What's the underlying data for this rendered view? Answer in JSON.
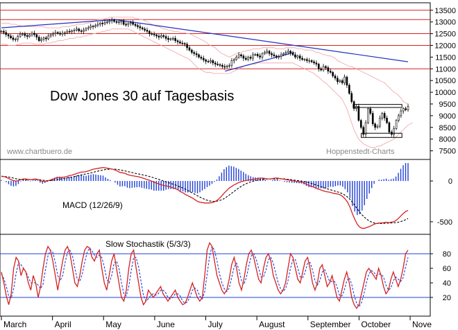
{
  "chart_data": [
    {
      "type": "candlestick",
      "title": "Dow Jones 30 auf Tagesbasis",
      "watermark_left": "www.chartbuero.de",
      "watermark_right": "Hoppenstedt-Charts",
      "y_ticks": [
        "13500",
        "13000",
        "12500",
        "12000",
        "11500",
        "11000",
        "10500",
        "10000",
        "9500",
        "9000",
        "8500",
        "8000",
        "7500"
      ],
      "ylim": [
        7250,
        13700
      ],
      "horizontal_levels": [
        13500,
        13100,
        12500,
        12000,
        11000
      ],
      "level_color": "#d62020",
      "trendlines": [
        {
          "from": [
            0.0,
            12750
          ],
          "to": [
            0.28,
            13100
          ]
        },
        {
          "from": [
            0.28,
            13100
          ],
          "to": [
            1.0,
            11300
          ]
        },
        {
          "from": [
            0.55,
            10900
          ],
          "to": [
            0.72,
            11700
          ]
        }
      ],
      "boxes": [
        {
          "x_from": 0.865,
          "x_to": 0.985,
          "y_low": 9350,
          "y_high": 9480
        },
        {
          "x_from": 0.885,
          "x_to": 0.985,
          "y_low": 8070,
          "y_high": 8250
        }
      ],
      "close": [
        12600,
        12550,
        12460,
        12400,
        12320,
        12250,
        12270,
        12380,
        12480,
        12500,
        12420,
        12380,
        12450,
        12520,
        12460,
        12350,
        12200,
        12260,
        12320,
        12280,
        12400,
        12460,
        12500,
        12550,
        12520,
        12480,
        12520,
        12540,
        12600,
        12580,
        12620,
        12650,
        12700,
        12620,
        12600,
        12650,
        12720,
        12760,
        12820,
        12800,
        12850,
        12900,
        12950,
        12920,
        12980,
        13000,
        13050,
        13080,
        13020,
        12980,
        13000,
        13050,
        12900,
        12880,
        12950,
        12970,
        12900,
        12850,
        12800,
        12750,
        12700,
        12650,
        12600,
        12500,
        12480,
        12450,
        12400,
        12350,
        12420,
        12380,
        12300,
        12250,
        12280,
        12300,
        12200,
        12150,
        12100,
        12080,
        12050,
        11900,
        11800,
        11700,
        11650,
        11600,
        11500,
        11450,
        11380,
        11320,
        11300,
        11350,
        11250,
        11200,
        11180,
        11150,
        11100,
        11080,
        11120,
        11150,
        11350,
        11400,
        11500,
        11600,
        11550,
        11450,
        11400,
        11500,
        11450,
        11600,
        11620,
        11550,
        11500,
        11650,
        11700,
        11750,
        11650,
        11600,
        11550,
        11500,
        11520,
        11600,
        11650,
        11700,
        11750,
        11680,
        11600,
        11500,
        11550,
        11450,
        11400,
        11400,
        11350,
        11350,
        11300,
        11250,
        11200,
        11000,
        10950,
        11100,
        11050,
        10900,
        10850,
        10700,
        10600,
        10450,
        10500,
        10400,
        10650,
        10300,
        9950,
        9600,
        9300,
        9400,
        8800,
        8500,
        8200,
        8700,
        9300,
        9100,
        8650,
        8500,
        8550,
        8900,
        9100,
        8900,
        8700,
        8300,
        8200,
        8450,
        8800,
        9000,
        9200,
        9300,
        9250,
        9400
      ],
      "bollinger_upper": [
        12950,
        12950,
        12950,
        12950,
        12900,
        12900,
        12900,
        12850,
        12850,
        12800,
        12800,
        12800,
        12800,
        12800,
        12800,
        12800,
        12800,
        12800,
        12800,
        12750,
        12750,
        12750,
        12750,
        12750,
        12750,
        12750,
        12800,
        12800,
        12800,
        12800,
        12850,
        12850,
        12900,
        12900,
        12900,
        12900,
        12950,
        12950,
        13000,
        13000,
        13050,
        13100,
        13100,
        13100,
        13150,
        13150,
        13200,
        13200,
        13200,
        13200,
        13200,
        13200,
        13200,
        13200,
        13200,
        13200,
        13200,
        13150,
        13150,
        13100,
        13100,
        13050,
        13000,
        12950,
        12900,
        12850,
        12800,
        12800,
        12750,
        12700,
        12700,
        12650,
        12650,
        12600,
        12600,
        12600,
        12550,
        12550,
        12550,
        12500,
        12500,
        12450,
        12400,
        12350,
        12300,
        12250,
        12200,
        12150,
        12050,
        12000,
        11950,
        11900,
        11800,
        11700,
        11650,
        11600,
        11550,
        11500,
        11550,
        11600,
        11650,
        11700,
        11700,
        11750,
        11750,
        11800,
        11800,
        11850,
        11850,
        11850,
        11850,
        11900,
        11900,
        11900,
        11900,
        11900,
        11900,
        11850,
        11850,
        11850,
        11850,
        11900,
        11900,
        11900,
        11900,
        11900,
        11850,
        11850,
        11850,
        11800,
        11800,
        11800,
        11800,
        11750,
        11700,
        11700,
        11650,
        11600,
        11600,
        11550,
        11550,
        11500,
        11450,
        11350,
        11300,
        11250,
        11200,
        11150,
        11100,
        11100,
        11050,
        11000,
        10950,
        10900,
        10850,
        10800,
        10750,
        10700,
        10650,
        10600,
        10550,
        10500,
        10450,
        10400,
        10300,
        10200,
        10100,
        10000,
        9950,
        9850,
        9750,
        9600,
        9550,
        9500
      ],
      "bollinger_lower": [
        12050,
        12050,
        12050,
        12000,
        12000,
        12000,
        12000,
        12050,
        12050,
        12100,
        12100,
        12100,
        12100,
        12100,
        12050,
        12050,
        12050,
        12050,
        12050,
        12100,
        12100,
        12100,
        12150,
        12150,
        12200,
        12200,
        12200,
        12250,
        12250,
        12300,
        12300,
        12300,
        12350,
        12350,
        12350,
        12400,
        12400,
        12450,
        12450,
        12500,
        12500,
        12550,
        12550,
        12600,
        12600,
        12650,
        12650,
        12700,
        12700,
        12700,
        12700,
        12700,
        12700,
        12700,
        12700,
        12650,
        12600,
        12550,
        12500,
        12450,
        12400,
        12350,
        12300,
        12250,
        12200,
        12150,
        12100,
        12050,
        12000,
        11950,
        11900,
        11850,
        11800,
        11750,
        11700,
        11650,
        11600,
        11550,
        11500,
        11450,
        11400,
        11300,
        11200,
        11100,
        11000,
        10950,
        10900,
        10850,
        10850,
        10850,
        10800,
        10800,
        10800,
        10800,
        10800,
        10800,
        10800,
        10800,
        10850,
        10900,
        10950,
        11000,
        11050,
        11100,
        11150,
        11150,
        11200,
        11200,
        11200,
        11250,
        11250,
        11250,
        11250,
        11250,
        11250,
        11250,
        11250,
        11250,
        11250,
        11250,
        11250,
        11250,
        11250,
        11250,
        11250,
        11200,
        11150,
        11100,
        11050,
        11000,
        10950,
        10900,
        10850,
        10800,
        10700,
        10650,
        10550,
        10450,
        10400,
        10300,
        10200,
        10100,
        10000,
        9900,
        9800,
        9700,
        9500,
        9300,
        9000,
        8700,
        8400,
        8200,
        8000,
        7900,
        7800,
        7750,
        7700,
        7650,
        7650,
        7650,
        7700,
        7700,
        7750,
        7800,
        7850,
        7900,
        7950,
        8000,
        8100,
        8200,
        8300,
        8400,
        8500,
        8600,
        8650,
        8700
      ]
    },
    {
      "type": "macd",
      "label": "MACD (12/26/9)",
      "y_ticks": [
        "0",
        "-500"
      ],
      "ylim": [
        -620,
        230
      ],
      "macd": [
        60,
        55,
        45,
        30,
        15,
        5,
        0,
        5,
        15,
        25,
        25,
        20,
        15,
        20,
        25,
        20,
        5,
        -5,
        -5,
        0,
        10,
        20,
        30,
        40,
        45,
        45,
        48,
        55,
        65,
        70,
        80,
        90,
        100,
        110,
        110,
        115,
        125,
        135,
        145,
        150,
        155,
        160,
        165,
        160,
        155,
        150,
        145,
        135,
        120,
        105,
        100,
        95,
        80,
        70,
        65,
        60,
        55,
        50,
        40,
        30,
        20,
        10,
        0,
        -15,
        -25,
        -35,
        -45,
        -55,
        -60,
        -65,
        -75,
        -85,
        -95,
        -110,
        -130,
        -145,
        -165,
        -180,
        -195,
        -210,
        -230,
        -250,
        -260,
        -265,
        -270,
        -270,
        -270,
        -265,
        -255,
        -240,
        -215,
        -185,
        -150,
        -120,
        -90,
        -70,
        -50,
        -35,
        -20,
        -10,
        0,
        5,
        10,
        15,
        20,
        25,
        30,
        35,
        35,
        30,
        25,
        25,
        30,
        35,
        35,
        30,
        25,
        20,
        15,
        10,
        5,
        0,
        -5,
        -10,
        -15,
        -25,
        -40,
        -55,
        -65,
        -75,
        -90,
        -100,
        -110,
        -120,
        -130,
        -135,
        -140,
        -150,
        -155,
        -160,
        -170,
        -190,
        -220,
        -260,
        -320,
        -400,
        -470,
        -530,
        -565,
        -580,
        -580,
        -570,
        -560,
        -545,
        -530,
        -520,
        -515,
        -515,
        -510,
        -505,
        -510,
        -505,
        -500,
        -485,
        -460,
        -430,
        -400,
        -375,
        -360
      ],
      "signal": [
        55,
        54,
        52,
        48,
        42,
        35,
        28,
        22,
        18,
        16,
        16,
        16,
        17,
        17,
        18,
        17,
        14,
        10,
        6,
        4,
        5,
        7,
        11,
        16,
        21,
        27,
        32,
        37,
        42,
        47,
        53,
        60,
        67,
        74,
        80,
        86,
        92,
        99,
        107,
        114,
        121,
        128,
        135,
        140,
        143,
        145,
        145,
        144,
        141,
        136,
        130,
        124,
        117,
        110,
        103,
        96,
        90,
        84,
        78,
        71,
        64,
        56,
        48,
        39,
        29,
        19,
        9,
        -1,
        -11,
        -20,
        -30,
        -40,
        -50,
        -62,
        -74,
        -87,
        -101,
        -116,
        -132,
        -148,
        -164,
        -181,
        -197,
        -212,
        -225,
        -236,
        -244,
        -249,
        -250,
        -248,
        -241,
        -231,
        -216,
        -197,
        -176,
        -153,
        -130,
        -108,
        -87,
        -68,
        -50,
        -35,
        -22,
        -11,
        -2,
        5,
        11,
        17,
        21,
        23,
        24,
        24,
        25,
        26,
        27,
        27,
        26,
        25,
        22,
        19,
        15,
        11,
        7,
        3,
        -1,
        -6,
        -13,
        -21,
        -30,
        -39,
        -49,
        -59,
        -69,
        -79,
        -89,
        -99,
        -108,
        -117,
        -126,
        -135,
        -145,
        -158,
        -175,
        -197,
        -225,
        -260,
        -300,
        -340,
        -380,
        -415,
        -445,
        -470,
        -490,
        -505,
        -515,
        -520,
        -522,
        -522,
        -520,
        -518,
        -516,
        -515,
        -513,
        -510,
        -505,
        -498,
        -488,
        -475,
        -460
      ],
      "line_color": "#d62020",
      "signal_color": "#000000",
      "histogram_color": "#1f3fd6"
    },
    {
      "type": "stochastic",
      "label": "Slow Stochastik (5/3/3)",
      "y_ticks": [
        "80",
        "60",
        "40",
        "20"
      ],
      "ylim": [
        0,
        100
      ],
      "levels": [
        80,
        20
      ],
      "k": [
        55,
        40,
        22,
        10,
        25,
        60,
        75,
        70,
        50,
        60,
        55,
        40,
        30,
        50,
        40,
        20,
        35,
        60,
        80,
        90,
        85,
        70,
        50,
        30,
        50,
        70,
        85,
        90,
        80,
        60,
        40,
        35,
        50,
        70,
        85,
        90,
        88,
        75,
        70,
        80,
        85,
        60,
        40,
        30,
        50,
        70,
        80,
        60,
        40,
        20,
        15,
        30,
        60,
        80,
        85,
        60,
        40,
        20,
        10,
        15,
        30,
        25,
        20,
        25,
        30,
        35,
        25,
        20,
        15,
        20,
        25,
        30,
        20,
        15,
        10,
        12,
        20,
        30,
        40,
        30,
        20,
        15,
        20,
        50,
        85,
        95,
        90,
        70,
        50,
        40,
        30,
        25,
        30,
        45,
        65,
        75,
        60,
        40,
        30,
        45,
        65,
        80,
        85,
        75,
        60,
        45,
        40,
        60,
        75,
        80,
        70,
        50,
        40,
        30,
        25,
        30,
        40,
        60,
        80,
        75,
        60,
        45,
        40,
        55,
        70,
        75,
        60,
        40,
        30,
        40,
        60,
        65,
        50,
        35,
        40,
        50,
        35,
        20,
        15,
        30,
        45,
        55,
        40,
        20,
        10,
        5,
        10,
        25,
        40,
        55,
        60,
        55,
        50,
        45,
        60,
        50,
        35,
        25,
        30,
        45,
        55,
        45,
        35,
        45,
        60,
        80,
        85
      ],
      "d": [
        52,
        46,
        35,
        22,
        19,
        32,
        53,
        68,
        65,
        60,
        55,
        48,
        40,
        40,
        40,
        37,
        32,
        38,
        58,
        77,
        85,
        82,
        68,
        50,
        43,
        50,
        68,
        82,
        85,
        77,
        60,
        45,
        42,
        52,
        68,
        82,
        88,
        84,
        78,
        75,
        78,
        75,
        62,
        45,
        40,
        50,
        67,
        70,
        60,
        40,
        25,
        22,
        35,
        57,
        75,
        75,
        62,
        42,
        23,
        15,
        18,
        23,
        25,
        23,
        25,
        30,
        30,
        27,
        20,
        18,
        20,
        25,
        25,
        22,
        15,
        12,
        14,
        21,
        30,
        33,
        30,
        22,
        18,
        28,
        52,
        77,
        90,
        85,
        70,
        53,
        40,
        32,
        28,
        33,
        47,
        62,
        67,
        58,
        43,
        38,
        47,
        63,
        77,
        80,
        73,
        60,
        48,
        48,
        58,
        72,
        75,
        67,
        53,
        40,
        32,
        28,
        32,
        43,
        60,
        72,
        72,
        60,
        48,
        47,
        55,
        67,
        68,
        58,
        43,
        37,
        43,
        55,
        58,
        50,
        42,
        42,
        42,
        35,
        23,
        22,
        30,
        43,
        47,
        38,
        23,
        12,
        7,
        13,
        25,
        40,
        52,
        57,
        55,
        50,
        52,
        52,
        48,
        37,
        30,
        33,
        43,
        48,
        45,
        42,
        47,
        62,
        75
      ],
      "k_color": "#d62020",
      "d_color": "#1f3fd6"
    }
  ],
  "x_axis": {
    "months": [
      "March",
      "April",
      "May",
      "June",
      "July",
      "August",
      "September",
      "October",
      "Nove"
    ]
  }
}
